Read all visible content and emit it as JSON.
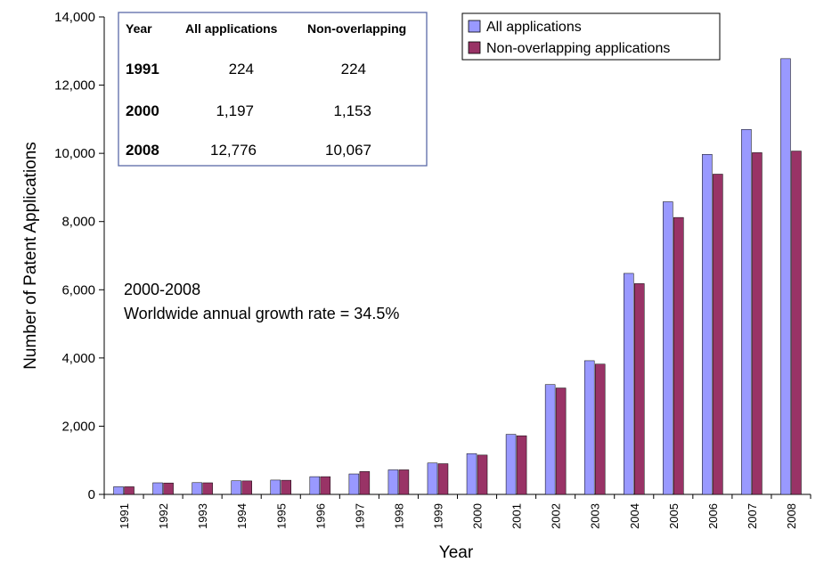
{
  "chart_data": {
    "type": "bar",
    "title": "",
    "xlabel": "Year",
    "ylabel": "Number of Patent Applications",
    "ylim": [
      0,
      14000
    ],
    "yticks": [
      0,
      2000,
      4000,
      6000,
      8000,
      10000,
      12000,
      14000
    ],
    "ytick_labels": [
      "0",
      "2,000",
      "4,000",
      "6,000",
      "8,000",
      "10,000",
      "12,000",
      "14,000"
    ],
    "grid": false,
    "legend_position": "top-right",
    "categories": [
      "1991",
      "1992",
      "1993",
      "1994",
      "1995",
      "1996",
      "1997",
      "1998",
      "1999",
      "2000",
      "2001",
      "2002",
      "2003",
      "2004",
      "2005",
      "2006",
      "2007",
      "2008"
    ],
    "series": [
      {
        "name": "All applications",
        "color": "#9999ff",
        "values": [
          224,
          340,
          345,
          400,
          420,
          520,
          600,
          720,
          920,
          1197,
          1760,
          3220,
          3920,
          6480,
          8580,
          9970,
          10700,
          12776
        ]
      },
      {
        "name": "Non-overlapping applications",
        "color": "#993366",
        "values": [
          224,
          335,
          340,
          395,
          415,
          520,
          670,
          720,
          900,
          1153,
          1720,
          3120,
          3820,
          6180,
          8120,
          9390,
          10020,
          10067
        ]
      }
    ],
    "annotation": {
      "line1": "2000-2008",
      "line2": "Worldwide annual growth rate = 34.5%"
    },
    "inset_table": {
      "headers": [
        "Year",
        "All applications",
        "Non-overlapping"
      ],
      "rows": [
        [
          "1991",
          "224",
          "224"
        ],
        [
          "2000",
          "1,197",
          "1,153"
        ],
        [
          "2008",
          "12,776",
          "10,067"
        ]
      ]
    }
  }
}
